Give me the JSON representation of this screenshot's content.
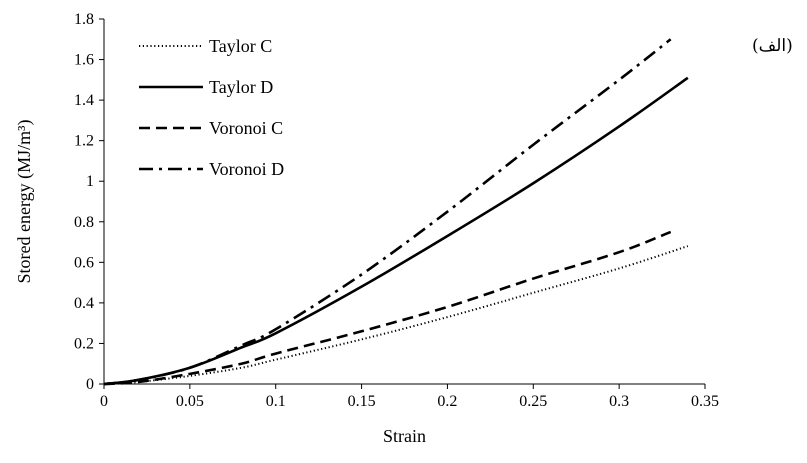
{
  "panel_label": "(الف)",
  "chart_data": {
    "type": "line",
    "xlabel": "Strain",
    "ylabel": "Stored energy (MJ/m³)",
    "xlim": [
      0,
      0.35
    ],
    "ylim": [
      0,
      1.8
    ],
    "x_ticks": [
      "0",
      "0.05",
      "0.1",
      "0.15",
      "0.2",
      "0.25",
      "0.3",
      "0.35"
    ],
    "y_ticks": [
      "0",
      "0.2",
      "0.4",
      "0.6",
      "0.8",
      "1",
      "1.2",
      "1.4",
      "1.6",
      "1.8"
    ],
    "grid": false,
    "legend_position": "top-left",
    "series": [
      {
        "name": "Taylor C",
        "style": "dotted",
        "x": [
          0,
          0.02,
          0.05,
          0.08,
          0.1,
          0.15,
          0.2,
          0.25,
          0.3,
          0.34
        ],
        "y": [
          0,
          0.01,
          0.04,
          0.08,
          0.12,
          0.22,
          0.33,
          0.45,
          0.57,
          0.68
        ]
      },
      {
        "name": "Taylor D",
        "style": "solid",
        "x": [
          0,
          0.02,
          0.05,
          0.08,
          0.1,
          0.15,
          0.2,
          0.25,
          0.3,
          0.34
        ],
        "y": [
          0,
          0.02,
          0.08,
          0.18,
          0.25,
          0.48,
          0.73,
          0.99,
          1.27,
          1.51
        ]
      },
      {
        "name": "Voronoi C",
        "style": "dashed",
        "x": [
          0,
          0.02,
          0.05,
          0.08,
          0.1,
          0.15,
          0.2,
          0.25,
          0.3,
          0.33
        ],
        "y": [
          0,
          0.01,
          0.05,
          0.1,
          0.15,
          0.26,
          0.38,
          0.52,
          0.65,
          0.75
        ]
      },
      {
        "name": "Voronoi D",
        "style": "dashdot",
        "x": [
          0,
          0.02,
          0.05,
          0.08,
          0.1,
          0.15,
          0.2,
          0.25,
          0.3,
          0.33
        ],
        "y": [
          0,
          0.02,
          0.08,
          0.19,
          0.27,
          0.54,
          0.85,
          1.18,
          1.5,
          1.7
        ]
      }
    ]
  }
}
